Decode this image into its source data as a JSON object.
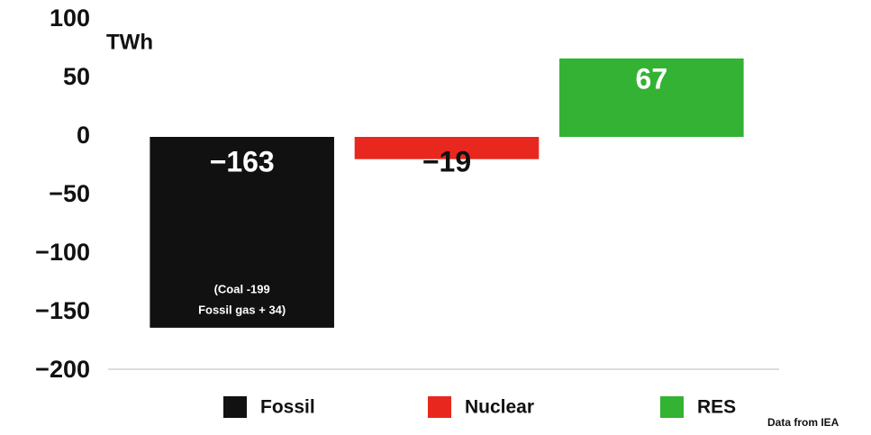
{
  "chart_data": {
    "type": "bar",
    "unit_label": "TWh",
    "categories": [
      "Fossil",
      "Nuclear",
      "RES"
    ],
    "values": [
      -163,
      -19,
      67
    ],
    "value_labels": [
      "−163",
      "−19",
      "67"
    ],
    "colors": [
      "#111111",
      "#e8281e",
      "#33b233"
    ],
    "ylim": [
      -200,
      100
    ],
    "yticks": [
      {
        "value": -200,
        "label": "−200"
      },
      {
        "value": -150,
        "label": "−150"
      },
      {
        "value": -100,
        "label": "−100"
      },
      {
        "value": -50,
        "label": "−50"
      },
      0,
      50,
      100
    ],
    "annotation": [
      "(Coal -199",
      "Fossil gas + 34)"
    ],
    "source": "Data from IEA",
    "legend": "bottom"
  }
}
